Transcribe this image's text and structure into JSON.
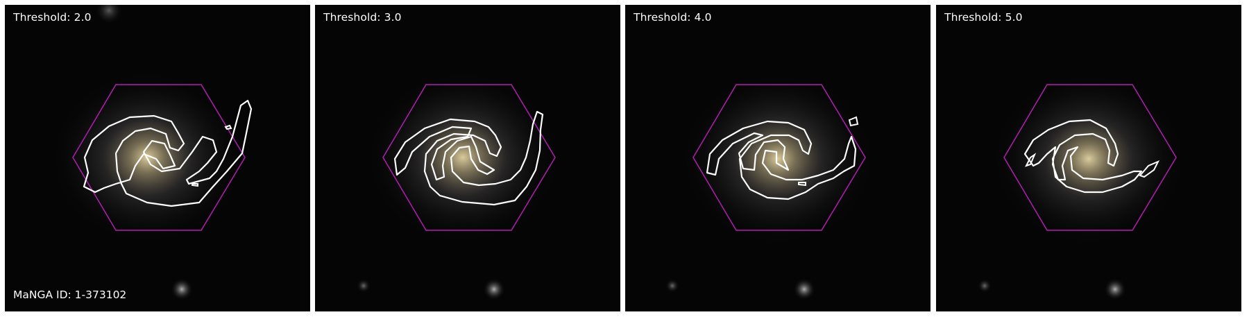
{
  "figure": {
    "colors": {
      "background": "#050505",
      "hexagon": "#b31db3",
      "contour": "#ffffff",
      "galaxy_core": "#d8c79a"
    },
    "panels": [
      {
        "label": "Threshold: 2.0"
      },
      {
        "label": "Threshold: 3.0"
      },
      {
        "label": "Threshold: 4.0"
      },
      {
        "label": "Threshold: 5.0"
      }
    ],
    "manga_id": "MaNGA ID: 1-373102"
  }
}
